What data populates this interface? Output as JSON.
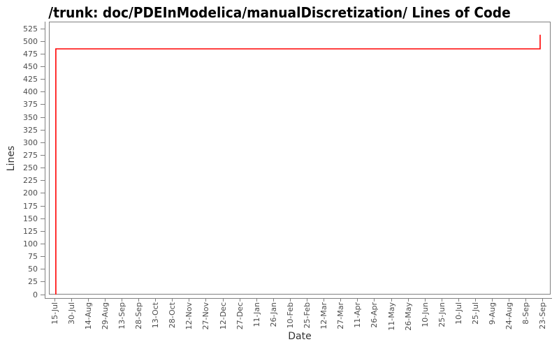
{
  "chart_data": {
    "type": "line",
    "title": "/trunk: doc/PDEInModelica/manualDiscretization/ Lines of Code",
    "xlabel": "Date",
    "ylabel": "Lines",
    "grid": false,
    "legend": "none",
    "background_color": "#ffffff",
    "axis_color": "#808080",
    "tick_label_color": "#4d4d4d",
    "ylim": [
      0,
      539
    ],
    "y_ticks": [
      0,
      25,
      50,
      75,
      100,
      125,
      150,
      175,
      200,
      225,
      250,
      275,
      300,
      325,
      350,
      375,
      400,
      425,
      450,
      475,
      500,
      525
    ],
    "x_tick_labels": [
      "15-Jul",
      "30-Jul",
      "14-Aug",
      "29-Aug",
      "13-Sep",
      "28-Sep",
      "13-Oct",
      "28-Oct",
      "12-Nov",
      "27-Nov",
      "12-Dec",
      "27-Dec",
      "11-Jan",
      "26-Jan",
      "10-Feb",
      "25-Feb",
      "12-Mar",
      "27-Mar",
      "11-Apr",
      "26-Apr",
      "11-May",
      "26-May",
      "10-Jun",
      "25-Jun",
      "10-Jul",
      "25-Jul",
      "9-Aug",
      "24-Aug",
      "8-Sep",
      "23-Sep"
    ],
    "series": [
      {
        "name": "Lines of Code",
        "color": "#ff0000",
        "x_unit": "fractional index into x_tick_labels (ticks every 15 days)",
        "points": [
          {
            "x": 0.08,
            "y": 0
          },
          {
            "x": 0.08,
            "y": 485
          },
          {
            "x": 28.84,
            "y": 485
          },
          {
            "x": 28.84,
            "y": 513
          }
        ],
        "events": [
          {
            "date": "~16-Jul",
            "change": "0 -> 485 lines (initial commit)"
          },
          {
            "date": "~21-Sep (following year)",
            "change": "485 -> 513 lines"
          }
        ]
      }
    ]
  }
}
